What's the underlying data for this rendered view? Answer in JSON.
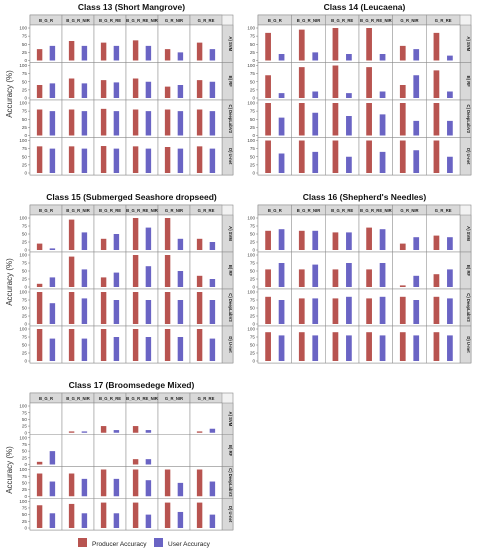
{
  "figure": {
    "y_axis_label": "Accuracy (%)",
    "y_ticks": [
      "0",
      "25",
      "50",
      "75",
      "100"
    ],
    "legend": [
      {
        "label": "Producer Accuracy",
        "color": "#b85450"
      },
      {
        "label": "User Accuracy",
        "color": "#6a64c4"
      }
    ]
  },
  "chart_data": [
    {
      "type": "bar",
      "title": "Class 13 (Short Mangrove)",
      "columns": [
        "B_G_R",
        "B_G_R_NIR",
        "B_G_R_RE",
        "B_G_R_RE_NIR",
        "G_R_NIR",
        "G_R_RE"
      ],
      "rows": [
        "A) SVM",
        "B) RF",
        "C) DeepLabV3",
        "D) U-net"
      ],
      "series": [
        "Producer Accuracy",
        "User Accuracy"
      ],
      "ylim": [
        0,
        100
      ],
      "values": [
        [
          [
            35,
            45
          ],
          [
            60,
            45
          ],
          [
            55,
            45
          ],
          [
            62,
            45
          ],
          [
            35,
            25
          ],
          [
            55,
            35
          ]
        ],
        [
          [
            40,
            45
          ],
          [
            60,
            45
          ],
          [
            55,
            48
          ],
          [
            60,
            50
          ],
          [
            35,
            40
          ],
          [
            55,
            50
          ]
        ],
        [
          [
            80,
            75
          ],
          [
            80,
            75
          ],
          [
            82,
            75
          ],
          [
            80,
            75
          ],
          [
            80,
            75
          ],
          [
            80,
            75
          ]
        ],
        [
          [
            82,
            75
          ],
          [
            82,
            75
          ],
          [
            83,
            75
          ],
          [
            82,
            75
          ],
          [
            80,
            75
          ],
          [
            82,
            75
          ]
        ]
      ]
    },
    {
      "type": "bar",
      "title": "Class 14 (Leucaena)",
      "columns": [
        "B_G_R",
        "B_G_R_NIR",
        "B_G_R_RE",
        "B_G_R_RE_NIR",
        "G_R_NIR",
        "G_R_RE"
      ],
      "rows": [
        "A) SVM",
        "B) RF",
        "C) DeepLabV3",
        "D) U-net"
      ],
      "series": [
        "Producer Accuracy",
        "User Accuracy"
      ],
      "ylim": [
        0,
        100
      ],
      "values": [
        [
          [
            85,
            20
          ],
          [
            95,
            25
          ],
          [
            100,
            20
          ],
          [
            100,
            20
          ],
          [
            45,
            35
          ],
          [
            85,
            15
          ]
        ],
        [
          [
            70,
            15
          ],
          [
            95,
            20
          ],
          [
            100,
            15
          ],
          [
            95,
            20
          ],
          [
            40,
            70
          ],
          [
            85,
            20
          ]
        ],
        [
          [
            100,
            55
          ],
          [
            100,
            70
          ],
          [
            100,
            60
          ],
          [
            100,
            65
          ],
          [
            100,
            45
          ],
          [
            100,
            45
          ]
        ],
        [
          [
            100,
            60
          ],
          [
            100,
            65
          ],
          [
            100,
            50
          ],
          [
            100,
            65
          ],
          [
            100,
            70
          ],
          [
            100,
            50
          ]
        ]
      ]
    },
    {
      "type": "bar",
      "title": "Class 15 (Submerged Seashore dropseed)",
      "columns": [
        "B_G_R",
        "B_G_R_NIR",
        "B_G_R_RE",
        "B_G_R_RE_NIR",
        "G_R_NIR",
        "G_R_RE"
      ],
      "rows": [
        "A) SVM",
        "B) RF",
        "C) DeepLabV3",
        "D) U-net"
      ],
      "series": [
        "Producer Accuracy",
        "User Accuracy"
      ],
      "ylim": [
        0,
        100
      ],
      "values": [
        [
          [
            20,
            5
          ],
          [
            95,
            55
          ],
          [
            35,
            50
          ],
          [
            100,
            70
          ],
          [
            100,
            35
          ],
          [
            35,
            25
          ]
        ],
        [
          [
            10,
            30
          ],
          [
            95,
            55
          ],
          [
            30,
            45
          ],
          [
            100,
            65
          ],
          [
            100,
            50
          ],
          [
            35,
            25
          ]
        ],
        [
          [
            100,
            65
          ],
          [
            100,
            80
          ],
          [
            100,
            75
          ],
          [
            100,
            75
          ],
          [
            100,
            75
          ],
          [
            100,
            75
          ]
        ],
        [
          [
            100,
            70
          ],
          [
            100,
            70
          ],
          [
            100,
            75
          ],
          [
            100,
            75
          ],
          [
            100,
            75
          ],
          [
            100,
            70
          ]
        ]
      ]
    },
    {
      "type": "bar",
      "title": "Class 16 (Shepherd's Needles)",
      "columns": [
        "B_G_R",
        "B_G_R_NIR",
        "B_G_R_RE",
        "B_G_R_RE_NIR",
        "G_R_NIR",
        "G_R_RE"
      ],
      "rows": [
        "A) SVM",
        "B) RF",
        "C) DeepLabV3",
        "D) U-net"
      ],
      "series": [
        "Producer Accuracy",
        "User Accuracy"
      ],
      "ylim": [
        0,
        100
      ],
      "values": [
        [
          [
            60,
            65
          ],
          [
            60,
            60
          ],
          [
            55,
            55
          ],
          [
            70,
            65
          ],
          [
            20,
            40
          ],
          [
            45,
            40
          ]
        ],
        [
          [
            55,
            75
          ],
          [
            55,
            70
          ],
          [
            55,
            75
          ],
          [
            55,
            75
          ],
          [
            5,
            35
          ],
          [
            40,
            55
          ]
        ],
        [
          [
            85,
            75
          ],
          [
            80,
            80
          ],
          [
            80,
            85
          ],
          [
            80,
            85
          ],
          [
            85,
            75
          ],
          [
            85,
            80
          ]
        ],
        [
          [
            90,
            80
          ],
          [
            90,
            80
          ],
          [
            90,
            80
          ],
          [
            90,
            80
          ],
          [
            90,
            80
          ],
          [
            90,
            80
          ]
        ]
      ]
    },
    {
      "type": "bar",
      "title": "Class 17 (Broomsedege Mixed)",
      "columns": [
        "B_G_R",
        "B_G_R_NIR",
        "B_G_R_RE",
        "B_G_R_RE_NIR",
        "G_R_NIR",
        "G_R_RE"
      ],
      "rows": [
        "A) SVM",
        "B) RF",
        "C) DeepLabV3",
        "D) U-net"
      ],
      "series": [
        "Producer Accuracy",
        "User Accuracy"
      ],
      "ylim": [
        0,
        100
      ],
      "values": [
        [
          [
            0,
            0
          ],
          [
            5,
            5
          ],
          [
            25,
            10
          ],
          [
            25,
            10
          ],
          [
            0,
            0
          ],
          [
            5,
            15
          ]
        ],
        [
          [
            10,
            50
          ],
          [
            0,
            0
          ],
          [
            0,
            0
          ],
          [
            20,
            20
          ],
          [
            0,
            0
          ],
          [
            0,
            0
          ]
        ],
        [
          [
            85,
            55
          ],
          [
            85,
            65
          ],
          [
            100,
            65
          ],
          [
            100,
            60
          ],
          [
            100,
            50
          ],
          [
            100,
            55
          ]
        ],
        [
          [
            85,
            55
          ],
          [
            90,
            55
          ],
          [
            95,
            55
          ],
          [
            95,
            50
          ],
          [
            95,
            60
          ],
          [
            95,
            50
          ]
        ]
      ]
    }
  ]
}
